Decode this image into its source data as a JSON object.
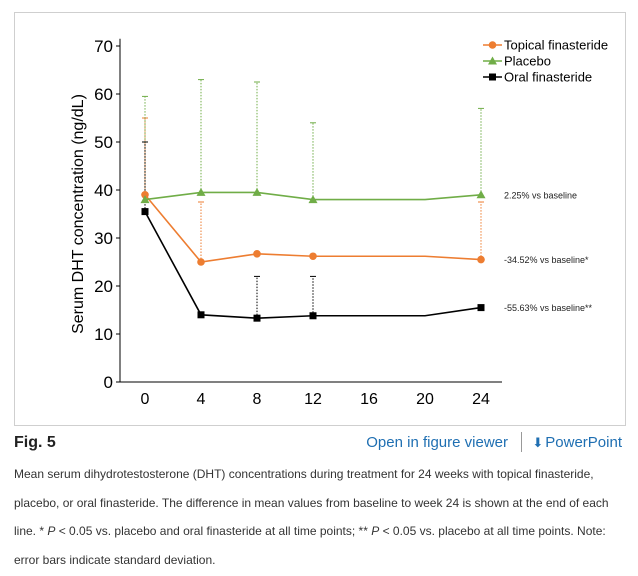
{
  "chart_data": {
    "type": "line",
    "ylabel": "Serum DHT concentration (ng/dL)",
    "xlabel": "",
    "x": [
      0,
      4,
      8,
      12,
      16,
      20,
      24
    ],
    "x_ticks": [
      "0",
      "4",
      "8",
      "12",
      "16",
      "20",
      "24"
    ],
    "ylim": [
      0,
      70
    ],
    "y_ticks": [
      "0",
      "10",
      "20",
      "30",
      "40",
      "50",
      "60",
      "70"
    ],
    "legend_position": "top-right",
    "series": [
      {
        "name": "Topical finasteride",
        "color": "#ed7d31",
        "marker": "circle",
        "values": [
          39,
          25,
          26.7,
          26.2,
          26.2,
          26.2,
          25.5
        ],
        "marker_points": [
          0,
          4,
          8,
          12,
          24
        ],
        "sd_upper": [
          55,
          37.5,
          null,
          null,
          null,
          null,
          37.5
        ],
        "annotation": "-34.52% vs baseline*"
      },
      {
        "name": "Placebo",
        "color": "#70ad47",
        "marker": "triangle",
        "values": [
          38,
          39.5,
          39.5,
          38,
          38,
          38,
          39
        ],
        "marker_points": [
          0,
          4,
          8,
          12,
          24
        ],
        "sd_upper": [
          59.5,
          63,
          62.5,
          54,
          null,
          null,
          57
        ],
        "annotation": "2.25% vs baseline"
      },
      {
        "name": "Oral finasteride",
        "color": "#000000",
        "marker": "square",
        "values": [
          35.5,
          14,
          13.3,
          13.8,
          13.8,
          13.8,
          15.5
        ],
        "marker_points": [
          0,
          4,
          8,
          12,
          24
        ],
        "sd_upper": [
          50,
          null,
          22,
          22,
          null,
          null,
          null
        ],
        "annotation": "-55.63% vs baseline**"
      }
    ]
  },
  "figure": {
    "label": "Fig. 5",
    "viewer_link": "Open in figure viewer",
    "ppt_link": "PowerPoint",
    "caption": {
      "part1": "Mean serum dihydrotestosterone (DHT) concentrations during treatment for 24 weeks with topical finasteride, placebo, or oral finasteride. The difference in mean values from baseline to week 24 is shown at the end of each line. * ",
      "p1": "P",
      "part2": " < 0.05 vs. placebo and oral finasteride at all time points; ** ",
      "p2": "P",
      "part3": " < 0.05 vs. placebo at all time points. Note: error bars indicate standard deviation."
    }
  }
}
